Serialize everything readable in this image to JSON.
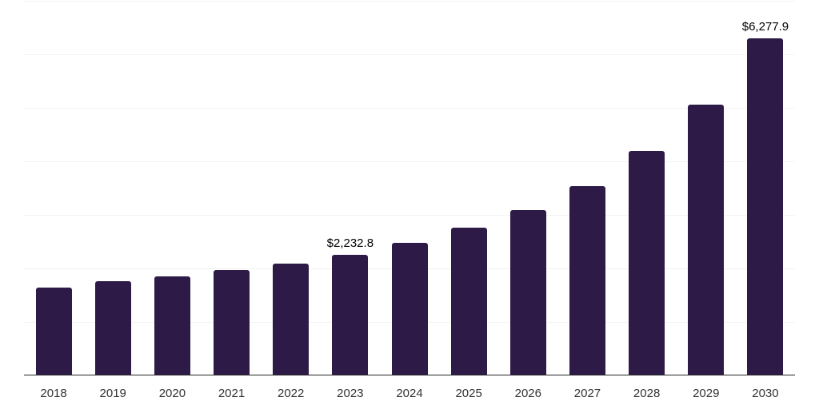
{
  "chart_data": {
    "type": "bar",
    "title": "",
    "xlabel": "",
    "ylabel": "",
    "categories": [
      "2018",
      "2019",
      "2020",
      "2021",
      "2022",
      "2023",
      "2024",
      "2025",
      "2026",
      "2027",
      "2028",
      "2029",
      "2030"
    ],
    "values": [
      1630,
      1740,
      1840,
      1950,
      2070,
      2232.8,
      2465,
      2740,
      3075,
      3520,
      4185,
      5040,
      6277.9
    ],
    "bar_labels": [
      "",
      "",
      "",
      "",
      "",
      "$2,232.8",
      "",
      "",
      "",
      "",
      "",
      "",
      "$6,277.9"
    ],
    "ylim": [
      0,
      7000
    ],
    "gridline_step": 1000,
    "grid": "horizontal-only",
    "legend": "none",
    "colors": {
      "bar": "#2e1a47",
      "gridline": "#f2f2f2",
      "axis": "#262626",
      "tick_label": "#333333",
      "data_label": "#000000",
      "background": "#ffffff"
    }
  }
}
